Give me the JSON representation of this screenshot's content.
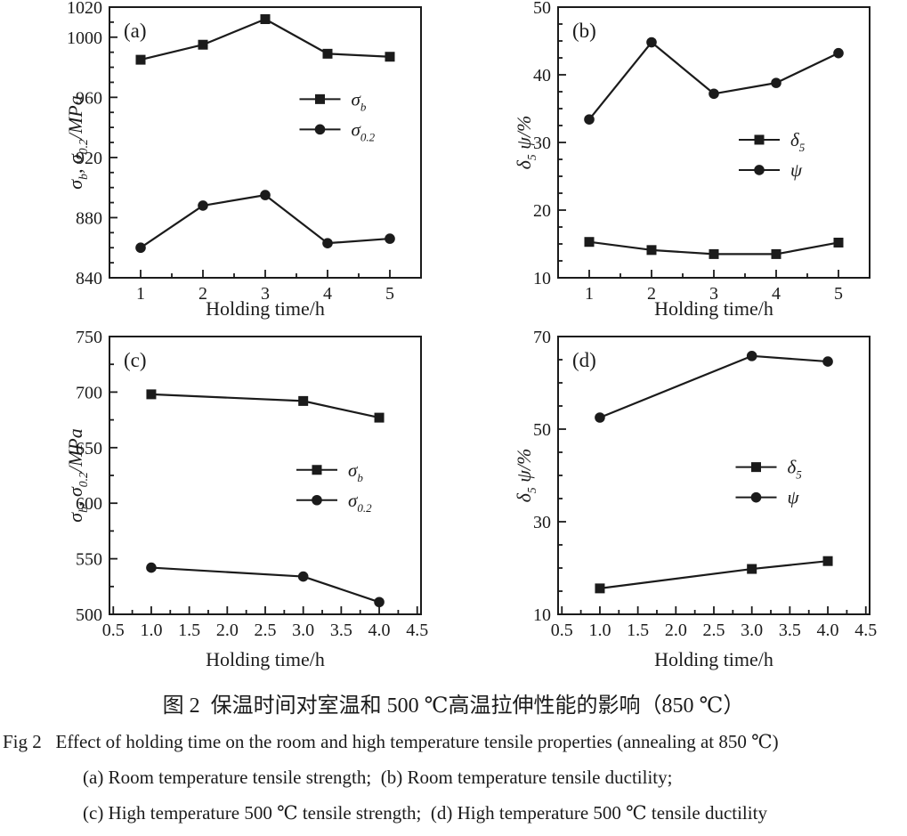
{
  "page": {
    "bg": "#ffffff",
    "ink": "#1b1b1b"
  },
  "caption": {
    "zh": "图 2  保温时间对室温和 500 ℃高温拉伸性能的影响（850 ℃）",
    "en": "Fig 2   Effect of holding time on the room and high temperature tensile properties (annealing at 850 ℃)",
    "sub1": "(a) Room temperature tensile strength;  (b) Room temperature tensile ductility;",
    "sub2": "(c) High temperature 500 ℃ tensile strength;  (d) High temperature 500 ℃ tensile ductility"
  },
  "chart_data": [
    {
      "id": "a",
      "type": "line",
      "panel_label": "(a)",
      "xlabel": "Holding time/h",
      "ylabel": "σ_{b},  σ_{0.2}/MPa",
      "x": [
        1,
        2,
        3,
        4,
        5
      ],
      "xlim": [
        0.5,
        5.5
      ],
      "xticks": [
        1,
        2,
        3,
        4,
        5
      ],
      "xtick_labels": [
        "1",
        "2",
        "3",
        "4",
        "5"
      ],
      "x_minor_step": 0.5,
      "ylim": [
        840,
        1020
      ],
      "yticks": [
        840,
        880,
        920,
        960,
        1000,
        1020
      ],
      "ytick_labels": [
        "840",
        "880",
        "920",
        "960",
        "1000",
        "1020"
      ],
      "y_minor_step": 10,
      "grid": false,
      "series": [
        {
          "label": "σ_{b}",
          "marker": "square",
          "values": [
            985,
            995,
            1012,
            989,
            987
          ]
        },
        {
          "label": "σ_{0.2}",
          "marker": "circle",
          "values": [
            860,
            888,
            895,
            863,
            866
          ]
        }
      ],
      "legend": {
        "position": "inside-right",
        "fx": 0.61,
        "fy": 0.34
      }
    },
    {
      "id": "b",
      "type": "line",
      "panel_label": "(b)",
      "xlabel": "Holding time/h",
      "ylabel": "δ_{5}  ψ/%",
      "x": [
        1,
        2,
        3,
        4,
        5
      ],
      "xlim": [
        0.5,
        5.5
      ],
      "xticks": [
        1,
        2,
        3,
        4,
        5
      ],
      "xtick_labels": [
        "1",
        "2",
        "3",
        "4",
        "5"
      ],
      "x_minor_step": 0.5,
      "ylim": [
        10,
        50
      ],
      "yticks": [
        10,
        20,
        30,
        40,
        50
      ],
      "ytick_labels": [
        "10",
        "20",
        "30",
        "40",
        "50"
      ],
      "y_minor_step": 2.5,
      "grid": false,
      "series": [
        {
          "label": "δ_{5}",
          "marker": "square",
          "values": [
            15.3,
            14.1,
            13.5,
            13.5,
            15.2
          ]
        },
        {
          "label": "ψ",
          "marker": "circle",
          "values": [
            33.4,
            44.8,
            37.2,
            38.8,
            43.2
          ]
        }
      ],
      "legend": {
        "position": "inside-right",
        "fx": 0.58,
        "fy": 0.49
      }
    },
    {
      "id": "c",
      "type": "line",
      "panel_label": "(c)",
      "xlabel": "Holding time/h",
      "ylabel": "σ_{b},  σ_{0.2}/MPa",
      "x": [
        1.0,
        3.0,
        4.0
      ],
      "xlim": [
        0.45,
        4.55
      ],
      "xticks": [
        0.5,
        1.0,
        1.5,
        2.0,
        2.5,
        3.0,
        3.5,
        4.0,
        4.5
      ],
      "xtick_labels": [
        "0.5",
        "1.0",
        "1.5",
        "2.0",
        "2.5",
        "3.0",
        "3.5",
        "4.0",
        "4.5"
      ],
      "x_minor_step": 0.25,
      "ylim": [
        500,
        750
      ],
      "yticks": [
        500,
        550,
        600,
        650,
        700,
        750
      ],
      "ytick_labels": [
        "500",
        "550",
        "600",
        "650",
        "700",
        "750"
      ],
      "y_minor_step": 25,
      "grid": false,
      "series": [
        {
          "label": "σ_{b}",
          "marker": "square",
          "values": [
            698,
            692,
            677
          ]
        },
        {
          "label": "σ_{0.2}",
          "marker": "circle",
          "values": [
            542,
            534,
            511
          ]
        }
      ],
      "legend": {
        "position": "inside-right",
        "fx": 0.6,
        "fy": 0.48
      }
    },
    {
      "id": "d",
      "type": "line",
      "panel_label": "(d)",
      "xlabel": "Holding time/h",
      "ylabel": "δ_{5}  ψ/%",
      "x": [
        1.0,
        3.0,
        4.0
      ],
      "xlim": [
        0.45,
        4.55
      ],
      "xticks": [
        0.5,
        1.0,
        1.5,
        2.0,
        2.5,
        3.0,
        3.5,
        4.0,
        4.5
      ],
      "xtick_labels": [
        "0.5",
        "1.0",
        "1.5",
        "2.0",
        "2.5",
        "3.0",
        "3.5",
        "4.0",
        "4.5"
      ],
      "x_minor_step": 0.25,
      "ylim": [
        10,
        70
      ],
      "yticks": [
        10,
        30,
        50,
        70
      ],
      "ytick_labels": [
        "10",
        "30",
        "50",
        "70"
      ],
      "y_minor_step": 5,
      "grid": false,
      "series": [
        {
          "label": "δ_{5}",
          "marker": "square",
          "values": [
            15.6,
            19.8,
            21.5
          ]
        },
        {
          "label": "ψ",
          "marker": "circle",
          "values": [
            52.5,
            65.8,
            64.6
          ]
        }
      ],
      "legend": {
        "position": "inside-right",
        "fx": 0.57,
        "fy": 0.47
      }
    }
  ]
}
